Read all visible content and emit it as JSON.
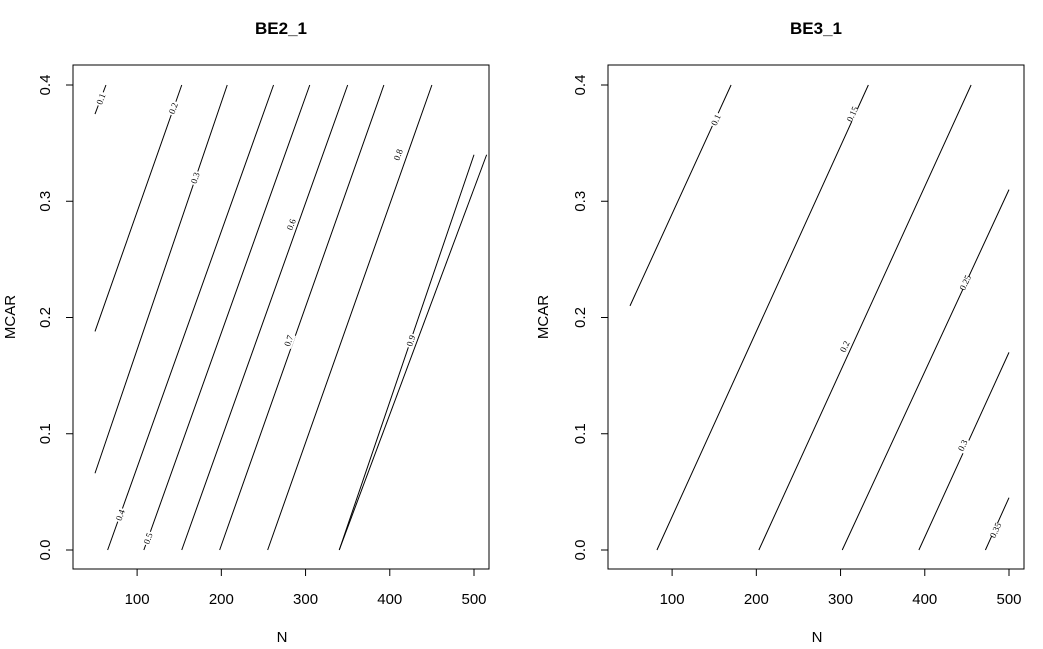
{
  "chart_data": [
    {
      "type": "contour",
      "title": "BE2_1",
      "xlabel": "N",
      "ylabel": "MCAR",
      "xlim": [
        50,
        500
      ],
      "ylim": [
        0,
        0.4
      ],
      "xticks": [
        "100",
        "200",
        "300",
        "400",
        "500"
      ],
      "yticks": [
        "0.0",
        "0.1",
        "0.2",
        "0.3",
        "0.4"
      ],
      "contours": [
        {
          "level": "0.1",
          "points": [
            [
              50,
              0.375
            ],
            [
              63,
              0.4
            ]
          ],
          "label_at": [
            57,
            0.388
          ]
        },
        {
          "level": "0.2",
          "points": [
            [
              50,
              0.188
            ],
            [
              153,
              0.4
            ]
          ],
          "label_at": [
            143,
            0.38
          ]
        },
        {
          "level": "0.3",
          "points": [
            [
              50,
              0.066
            ],
            [
              207,
              0.4
            ]
          ],
          "label_at": [
            169,
            0.32
          ]
        },
        {
          "level": "0.4",
          "points": [
            [
              65,
              0.0
            ],
            [
              262,
              0.4
            ]
          ],
          "label_at": [
            80,
            0.03
          ]
        },
        {
          "level": "0.5",
          "points": [
            [
              108,
              0.0
            ],
            [
              305,
              0.4
            ]
          ],
          "label_at": [
            113,
            0.01
          ]
        },
        {
          "level": "0.6",
          "points": [
            [
              153,
              0.0
            ],
            [
              350,
              0.4
            ]
          ],
          "label_at": [
            283,
            0.28
          ]
        },
        {
          "level": "0.6",
          "points": [
            [
              198,
              0.0
            ],
            [
              393,
              0.4
            ]
          ],
          "label_at": null
        },
        {
          "level": "0.7",
          "points": [
            [
              255,
              0.0
            ],
            [
              450,
              0.4
            ]
          ],
          "label_at": [
            280,
            0.18
          ]
        },
        {
          "level": "0.8",
          "points": [
            [
              340,
              0.0
            ],
            [
              515,
              0.34
            ]
          ],
          "label_at": [
            410,
            0.34
          ]
        },
        {
          "level": "0.9",
          "points": [
            [
              340,
              0.0
            ],
            [
              500,
              0.34
            ]
          ],
          "label_at": [
            425,
            0.18
          ]
        }
      ]
    },
    {
      "type": "contour",
      "title": "BE3_1",
      "xlabel": "N",
      "ylabel": "MCAR",
      "xlim": [
        50,
        500
      ],
      "ylim": [
        0,
        0.4
      ],
      "xticks": [
        "100",
        "200",
        "300",
        "400",
        "500"
      ],
      "yticks": [
        "0.0",
        "0.1",
        "0.2",
        "0.3",
        "0.4"
      ],
      "contours": [
        {
          "level": "0.1",
          "points": [
            [
              50,
              0.21
            ],
            [
              170,
              0.4
            ]
          ],
          "label_at": [
            152,
            0.37
          ]
        },
        {
          "level": "0.15",
          "points": [
            [
              82,
              0.0
            ],
            [
              333,
              0.4
            ]
          ],
          "label_at": [
            314,
            0.375
          ]
        },
        {
          "level": "0.2",
          "points": [
            [
              203,
              0.0
            ],
            [
              455,
              0.4
            ]
          ],
          "label_at": [
            305,
            0.175
          ]
        },
        {
          "level": "0.25",
          "points": [
            [
              302,
              0.0
            ],
            [
              500,
              0.31
            ]
          ],
          "label_at": [
            448,
            0.23
          ]
        },
        {
          "level": "0.3",
          "points": [
            [
              393,
              0.0
            ],
            [
              500,
              0.17
            ]
          ],
          "label_at": [
            445,
            0.09
          ]
        },
        {
          "level": "0.35",
          "points": [
            [
              472,
              0.0
            ],
            [
              500,
              0.045
            ]
          ],
          "label_at": [
            484,
            0.017
          ]
        }
      ]
    }
  ]
}
